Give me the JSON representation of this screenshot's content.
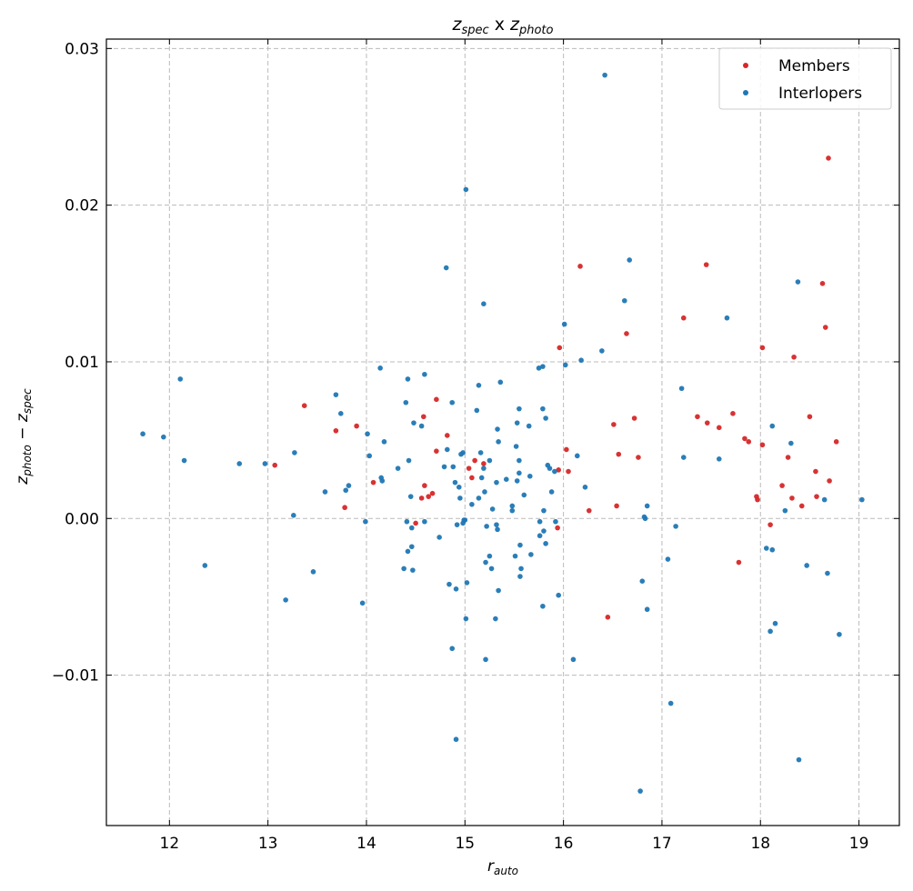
{
  "chart_data": {
    "type": "scatter",
    "title": {
      "base1": "z",
      "sub1": "spec",
      "mid": " x ",
      "base2": "z",
      "sub2": "photo"
    },
    "xlabel": {
      "base": "r",
      "sub": "auto"
    },
    "ylabel": {
      "base1": "z",
      "sub1": "photo",
      "mid": " − ",
      "base2": "z",
      "sub2": "spec"
    },
    "xlim": [
      11.36,
      19.41
    ],
    "ylim": [
      -0.0196,
      0.0306
    ],
    "grid": true,
    "legend_position": "top-right",
    "x_ticks": [
      12,
      13,
      14,
      15,
      16,
      17,
      18,
      19
    ],
    "x_tick_labels": [
      "12",
      "13",
      "14",
      "15",
      "16",
      "17",
      "18",
      "19"
    ],
    "y_ticks": [
      0.03,
      0.02,
      0.01,
      0.0,
      -0.01
    ],
    "y_tick_labels": [
      "0.03",
      "0.02",
      "0.01",
      "0.00",
      "−0.01"
    ],
    "series": [
      {
        "name": "Members",
        "color": "#d62728",
        "points": [
          [
            13.07,
            0.0034
          ],
          [
            13.37,
            0.0072
          ],
          [
            13.69,
            0.0056
          ],
          [
            13.78,
            0.0007
          ],
          [
            13.9,
            0.0059
          ],
          [
            14.07,
            0.0023
          ],
          [
            14.5,
            -0.0003
          ],
          [
            14.56,
            0.0013
          ],
          [
            14.58,
            0.0065
          ],
          [
            14.59,
            0.0021
          ],
          [
            14.63,
            0.0014
          ],
          [
            14.67,
            0.0016
          ],
          [
            14.71,
            0.0076
          ],
          [
            14.71,
            0.0043
          ],
          [
            14.82,
            0.0053
          ],
          [
            15.04,
            0.0032
          ],
          [
            15.07,
            0.0026
          ],
          [
            15.1,
            0.0037
          ],
          [
            15.19,
            0.0035
          ],
          [
            15.96,
            0.0109
          ],
          [
            15.94,
            -0.0006
          ],
          [
            15.95,
            0.0031
          ],
          [
            16.03,
            0.0044
          ],
          [
            16.05,
            0.003
          ],
          [
            16.17,
            0.0161
          ],
          [
            16.26,
            0.0005
          ],
          [
            16.45,
            -0.0063
          ],
          [
            16.51,
            0.006
          ],
          [
            16.54,
            0.0008
          ],
          [
            16.56,
            0.0041
          ],
          [
            16.64,
            0.0118
          ],
          [
            16.72,
            0.0064
          ],
          [
            16.76,
            0.0039
          ],
          [
            17.22,
            0.0128
          ],
          [
            17.36,
            0.0065
          ],
          [
            17.45,
            0.0162
          ],
          [
            17.46,
            0.0061
          ],
          [
            17.58,
            0.0058
          ],
          [
            17.72,
            0.0067
          ],
          [
            17.78,
            -0.0028
          ],
          [
            17.84,
            0.0051
          ],
          [
            17.88,
            0.0049
          ],
          [
            17.96,
            0.0014
          ],
          [
            17.97,
            0.0012
          ],
          [
            18.02,
            0.0047
          ],
          [
            18.02,
            0.0109
          ],
          [
            18.1,
            -0.0004
          ],
          [
            18.22,
            0.0021
          ],
          [
            18.28,
            0.0039
          ],
          [
            18.32,
            0.0013
          ],
          [
            18.34,
            0.0103
          ],
          [
            18.42,
            0.0008
          ],
          [
            18.5,
            0.0065
          ],
          [
            18.56,
            0.003
          ],
          [
            18.57,
            0.0014
          ],
          [
            18.63,
            0.015
          ],
          [
            18.66,
            0.0122
          ],
          [
            18.69,
            0.023
          ],
          [
            18.7,
            0.0024
          ],
          [
            18.77,
            0.0049
          ]
        ]
      },
      {
        "name": "Interlopers",
        "color": "#1f77b4",
        "points": [
          [
            11.73,
            0.0054
          ],
          [
            11.94,
            0.0052
          ],
          [
            12.11,
            0.0089
          ],
          [
            12.15,
            0.0037
          ],
          [
            12.36,
            -0.003
          ],
          [
            12.71,
            0.0035
          ],
          [
            12.97,
            0.0035
          ],
          [
            13.18,
            -0.0052
          ],
          [
            13.26,
            0.0002
          ],
          [
            13.27,
            0.0042
          ],
          [
            13.46,
            -0.0034
          ],
          [
            13.58,
            0.0017
          ],
          [
            13.69,
            0.0079
          ],
          [
            13.74,
            0.0067
          ],
          [
            13.79,
            0.0018
          ],
          [
            13.82,
            0.0021
          ],
          [
            13.96,
            -0.0054
          ],
          [
            13.99,
            -0.0002
          ],
          [
            14.01,
            0.0054
          ],
          [
            14.03,
            0.004
          ],
          [
            14.14,
            0.0096
          ],
          [
            14.15,
            0.0026
          ],
          [
            14.16,
            0.0024
          ],
          [
            14.18,
            0.0049
          ],
          [
            14.32,
            0.0032
          ],
          [
            14.38,
            -0.0032
          ],
          [
            14.4,
            0.0074
          ],
          [
            14.41,
            -0.0002
          ],
          [
            14.42,
            0.0089
          ],
          [
            14.42,
            -0.0021
          ],
          [
            14.43,
            0.0037
          ],
          [
            14.45,
            0.0014
          ],
          [
            14.46,
            -0.0006
          ],
          [
            14.46,
            -0.0018
          ],
          [
            14.47,
            -0.0033
          ],
          [
            14.48,
            0.0061
          ],
          [
            14.56,
            0.0059
          ],
          [
            14.59,
            0.0092
          ],
          [
            14.59,
            -0.0002
          ],
          [
            14.74,
            -0.0012
          ],
          [
            14.79,
            0.0033
          ],
          [
            14.81,
            0.016
          ],
          [
            14.82,
            0.0044
          ],
          [
            14.84,
            -0.0042
          ],
          [
            14.87,
            0.0074
          ],
          [
            14.87,
            -0.0083
          ],
          [
            14.88,
            0.0033
          ],
          [
            14.9,
            0.0023
          ],
          [
            14.91,
            -0.0045
          ],
          [
            14.91,
            -0.0141
          ],
          [
            14.92,
            -0.0004
          ],
          [
            14.94,
            0.002
          ],
          [
            14.95,
            0.0013
          ],
          [
            14.96,
            0.0041
          ],
          [
            14.98,
            0.0042
          ],
          [
            14.98,
            -0.0003
          ],
          [
            14.99,
            -0.0001
          ],
          [
            15.0,
            -0.0001
          ],
          [
            15.01,
            -0.0064
          ],
          [
            15.01,
            0.021
          ],
          [
            15.02,
            -0.0041
          ],
          [
            15.07,
            0.0009
          ],
          [
            15.12,
            0.0069
          ],
          [
            15.14,
            0.0085
          ],
          [
            15.14,
            0.0013
          ],
          [
            15.16,
            0.0042
          ],
          [
            15.17,
            0.0026
          ],
          [
            15.19,
            0.0032
          ],
          [
            15.19,
            0.0137
          ],
          [
            15.2,
            0.0017
          ],
          [
            15.21,
            -0.0028
          ],
          [
            15.21,
            -0.009
          ],
          [
            15.22,
            -0.0005
          ],
          [
            15.25,
            0.0037
          ],
          [
            15.25,
            -0.0024
          ],
          [
            15.27,
            -0.0032
          ],
          [
            15.28,
            0.0006
          ],
          [
            15.31,
            -0.0064
          ],
          [
            15.32,
            0.0023
          ],
          [
            15.32,
            -0.0004
          ],
          [
            15.33,
            -0.0007
          ],
          [
            15.33,
            0.0057
          ],
          [
            15.34,
            -0.0046
          ],
          [
            15.34,
            0.0049
          ],
          [
            15.36,
            0.0087
          ],
          [
            15.42,
            0.0025
          ],
          [
            15.48,
            0.0008
          ],
          [
            15.48,
            0.0005
          ],
          [
            15.51,
            -0.0024
          ],
          [
            15.52,
            0.0046
          ],
          [
            15.53,
            0.0061
          ],
          [
            15.53,
            0.0024
          ],
          [
            15.55,
            0.007
          ],
          [
            15.55,
            0.0029
          ],
          [
            15.55,
            0.0037
          ],
          [
            15.56,
            -0.0017
          ],
          [
            15.56,
            -0.0037
          ],
          [
            15.57,
            -0.0032
          ],
          [
            15.6,
            0.0015
          ],
          [
            15.65,
            0.0059
          ],
          [
            15.66,
            0.0027
          ],
          [
            15.67,
            -0.0023
          ],
          [
            15.75,
            0.0096
          ],
          [
            15.76,
            -0.0011
          ],
          [
            15.76,
            -0.0002
          ],
          [
            15.79,
            0.0097
          ],
          [
            15.79,
            0.007
          ],
          [
            15.79,
            -0.0056
          ],
          [
            15.8,
            -0.0008
          ],
          [
            15.8,
            0.0005
          ],
          [
            15.82,
            -0.0016
          ],
          [
            15.82,
            0.0064
          ],
          [
            15.84,
            0.0034
          ],
          [
            15.86,
            0.0032
          ],
          [
            15.88,
            0.0017
          ],
          [
            15.91,
            0.003
          ],
          [
            15.92,
            -0.0002
          ],
          [
            15.95,
            -0.0049
          ],
          [
            16.01,
            0.0124
          ],
          [
            16.02,
            0.0098
          ],
          [
            16.1,
            -0.009
          ],
          [
            16.14,
            0.004
          ],
          [
            16.18,
            0.0101
          ],
          [
            16.22,
            0.002
          ],
          [
            16.39,
            0.0107
          ],
          [
            16.42,
            0.0283
          ],
          [
            16.62,
            0.0139
          ],
          [
            16.67,
            0.0165
          ],
          [
            16.8,
            -0.004
          ],
          [
            16.78,
            -0.0174
          ],
          [
            16.82,
            0.0001
          ],
          [
            16.83,
            0.0
          ],
          [
            16.85,
            0.0008
          ],
          [
            16.85,
            -0.0058
          ],
          [
            17.06,
            -0.0026
          ],
          [
            17.09,
            -0.0118
          ],
          [
            17.14,
            -0.0005
          ],
          [
            17.2,
            0.0083
          ],
          [
            17.22,
            0.0039
          ],
          [
            17.58,
            0.0038
          ],
          [
            17.66,
            0.0128
          ],
          [
            18.06,
            -0.0019
          ],
          [
            18.1,
            -0.0072
          ],
          [
            18.12,
            -0.002
          ],
          [
            18.12,
            0.0059
          ],
          [
            18.15,
            -0.0067
          ],
          [
            18.25,
            0.0005
          ],
          [
            18.31,
            0.0048
          ],
          [
            18.38,
            0.0151
          ],
          [
            18.39,
            -0.0154
          ],
          [
            18.47,
            -0.003
          ],
          [
            18.65,
            0.0012
          ],
          [
            18.68,
            -0.0035
          ],
          [
            18.8,
            -0.0074
          ],
          [
            19.03,
            0.0012
          ]
        ]
      }
    ]
  }
}
